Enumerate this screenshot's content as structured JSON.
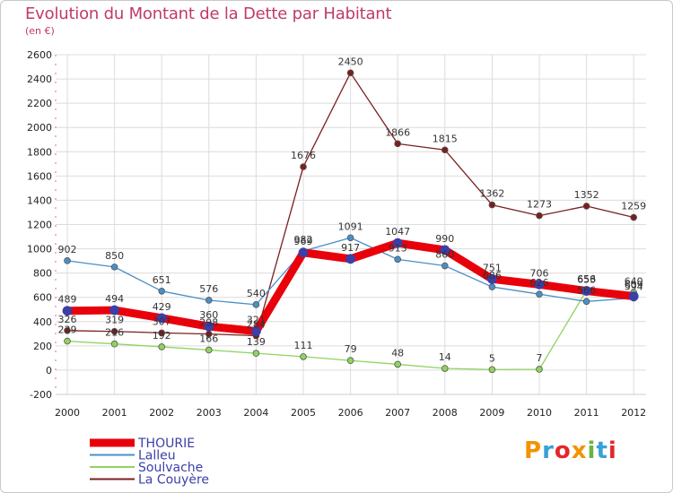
{
  "title": "Evolution du Montant de la Dette par Habitant",
  "unit": "(en €)",
  "logo": {
    "text": "Proxiti",
    "colors": [
      "#f39200",
      "#3aa0d8",
      "#e3262b",
      "#f39200",
      "#6cb33f",
      "#3aa0d8",
      "#e3262b"
    ]
  },
  "chart_data": {
    "type": "line",
    "x": [
      2000,
      2001,
      2002,
      2003,
      2004,
      2005,
      2006,
      2007,
      2008,
      2009,
      2010,
      2011,
      2012
    ],
    "ylim": [
      -200,
      2600
    ],
    "yticks": [
      -200,
      0,
      200,
      400,
      600,
      800,
      1000,
      1200,
      1400,
      1600,
      1800,
      2000,
      2200,
      2400,
      2600
    ],
    "grid": true,
    "legend_position": "bottom-left",
    "series": [
      {
        "name": "THOURIE",
        "color": "#e8000b",
        "values": [
          489,
          494,
          429,
          360,
          321,
          969,
          917,
          1047,
          990,
          751,
          706,
          653,
          609
        ]
      },
      {
        "name": "Lalleu",
        "color": "#4a8fc7",
        "values": [
          902,
          850,
          651,
          576,
          540,
          982,
          1091,
          913,
          860,
          686,
          626,
          566,
          594
        ]
      },
      {
        "name": "Soulvache",
        "color": "#8fd45f",
        "values": [
          239,
          216,
          192,
          166,
          139,
          111,
          79,
          48,
          14,
          5,
          7,
          656,
          640
        ]
      },
      {
        "name": "La Couyère",
        "color": "#7a1f1f",
        "values": [
          326,
          319,
          307,
          298,
          284,
          1676,
          2450,
          1866,
          1815,
          1362,
          1273,
          1352,
          1259
        ]
      }
    ]
  }
}
